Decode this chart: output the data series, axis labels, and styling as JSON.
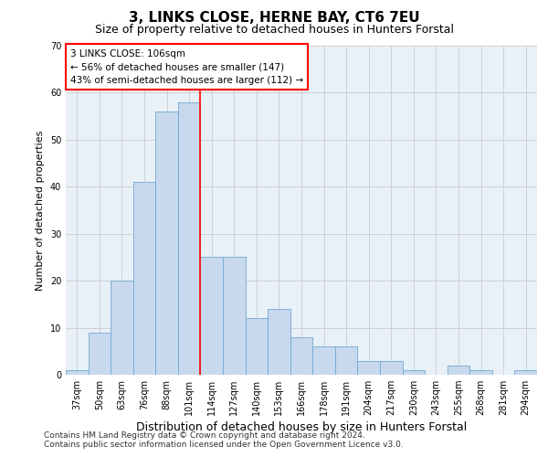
{
  "title": "3, LINKS CLOSE, HERNE BAY, CT6 7EU",
  "subtitle": "Size of property relative to detached houses in Hunters Forstal",
  "xlabel": "Distribution of detached houses by size in Hunters Forstal",
  "ylabel": "Number of detached properties",
  "categories": [
    "37sqm",
    "50sqm",
    "63sqm",
    "76sqm",
    "88sqm",
    "101sqm",
    "114sqm",
    "127sqm",
    "140sqm",
    "153sqm",
    "166sqm",
    "178sqm",
    "191sqm",
    "204sqm",
    "217sqm",
    "230sqm",
    "243sqm",
    "255sqm",
    "268sqm",
    "281sqm",
    "294sqm"
  ],
  "values": [
    1,
    9,
    20,
    41,
    56,
    58,
    25,
    25,
    12,
    14,
    8,
    6,
    6,
    3,
    3,
    1,
    0,
    2,
    1,
    0,
    1
  ],
  "bar_color": "#c8d9ed",
  "bar_edge_color": "#6fa8d0",
  "vline_color": "red",
  "vline_x": 5.5,
  "annotation_text": "3 LINKS CLOSE: 106sqm\n← 56% of detached houses are smaller (147)\n43% of semi-detached houses are larger (112) →",
  "annotation_box_color": "white",
  "annotation_box_edge": "red",
  "ylim": [
    0,
    70
  ],
  "yticks": [
    0,
    10,
    20,
    30,
    40,
    50,
    60,
    70
  ],
  "grid_color": "#cccccc",
  "bg_color": "#e8f0f8",
  "footnote1": "Contains HM Land Registry data © Crown copyright and database right 2024.",
  "footnote2": "Contains public sector information licensed under the Open Government Licence v3.0.",
  "title_fontsize": 11,
  "subtitle_fontsize": 9,
  "xlabel_fontsize": 9,
  "ylabel_fontsize": 8,
  "tick_fontsize": 7,
  "annotation_fontsize": 7.5,
  "footnote_fontsize": 6.5
}
